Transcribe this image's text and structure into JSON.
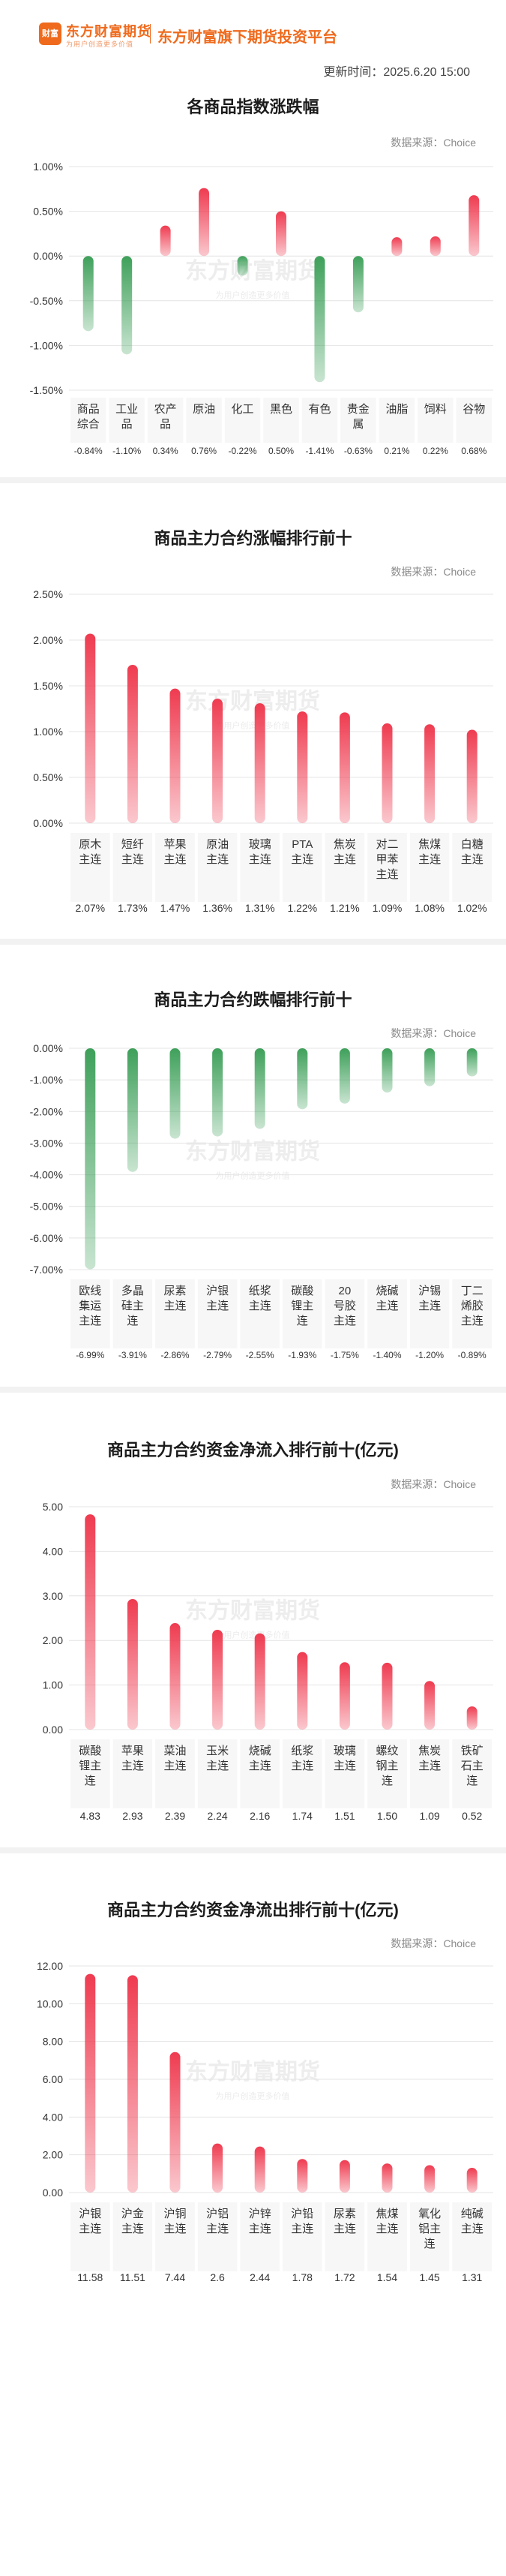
{
  "header": {
    "logo_mark": "财富",
    "logo_name": "东方财富期货",
    "logo_slogan": "为用户创造更多价值",
    "platform": "东方财富旗下期货投资平台",
    "update_time": "更新时间：2025.6.20 15:00"
  },
  "watermark": {
    "name": "东方财富期货",
    "slogan": "为用户创造更多价值"
  },
  "source_label": "数据来源：Choice",
  "colors": {
    "up": "#ef3b50",
    "down": "#3ea05a",
    "header": "#ef6a1c",
    "separator": "#f2f2f2"
  },
  "chart_data": [
    {
      "type": "bar",
      "title": "各商品指数涨跌幅",
      "categories": [
        "商品综合",
        "工业品",
        "农产品",
        "原油",
        "化工",
        "黑色",
        "有色",
        "贵金属",
        "油脂",
        "饲料",
        "谷物"
      ],
      "values": [
        -0.84,
        -1.1,
        0.34,
        0.76,
        -0.22,
        0.5,
        -1.41,
        -0.63,
        0.21,
        0.22,
        0.68
      ],
      "value_labels": [
        "-0.84%",
        "-1.10%",
        "0.34%",
        "0.76%",
        "-0.22%",
        "0.50%",
        "-1.41%",
        "-0.63%",
        "0.21%",
        "0.22%",
        "0.68%"
      ],
      "yticks": [
        "1.00%",
        "0.50%",
        "0.00%",
        "-0.50%",
        "-1.00%",
        "-1.50%"
      ],
      "ytick_values": [
        1.0,
        0.5,
        0.0,
        -0.5,
        -1.0,
        -1.5
      ],
      "ylim": [
        -1.5,
        1.0
      ],
      "grid": true
    },
    {
      "type": "bar",
      "title": "商品主力合约涨幅排行前十",
      "categories": [
        "原木主连",
        "短纤主连",
        "苹果主连",
        "原油主连",
        "玻璃主连",
        "PTA主连",
        "焦炭主连",
        "对二甲苯主连",
        "焦煤主连",
        "白糖主连"
      ],
      "values": [
        2.07,
        1.73,
        1.47,
        1.36,
        1.31,
        1.22,
        1.21,
        1.09,
        1.08,
        1.02
      ],
      "value_labels": [
        "2.07%",
        "1.73%",
        "1.47%",
        "1.36%",
        "1.31%",
        "1.22%",
        "1.21%",
        "1.09%",
        "1.08%",
        "1.02%"
      ],
      "yticks": [
        "2.50%",
        "2.00%",
        "1.50%",
        "1.00%",
        "0.50%",
        "0.00%"
      ],
      "ytick_values": [
        2.5,
        2.0,
        1.5,
        1.0,
        0.5,
        0.0
      ],
      "ylim": [
        0,
        2.5
      ],
      "grid": true
    },
    {
      "type": "bar",
      "title": "商品主力合约跌幅排行前十",
      "categories": [
        "欧线集运主连",
        "多晶硅主连",
        "尿素主连",
        "沪银主连",
        "纸浆主连",
        "碳酸锂主连",
        "20号胶主连",
        "烧碱主连",
        "沪锡主连",
        "丁二烯胶主连"
      ],
      "values": [
        -6.99,
        -3.91,
        -2.86,
        -2.79,
        -2.55,
        -1.93,
        -1.75,
        -1.4,
        -1.2,
        -0.89
      ],
      "value_labels": [
        "-6.99%",
        "-3.91%",
        "-2.86%",
        "-2.79%",
        "-2.55%",
        "-1.93%",
        "-1.75%",
        "-1.40%",
        "-1.20%",
        "-0.89%"
      ],
      "yticks": [
        "0.00%",
        "-1.00%",
        "-2.00%",
        "-3.00%",
        "-4.00%",
        "-5.00%",
        "-6.00%",
        "-7.00%"
      ],
      "ytick_values": [
        0,
        -1,
        -2,
        -3,
        -4,
        -5,
        -6,
        -7
      ],
      "ylim": [
        -7,
        0
      ],
      "grid": true
    },
    {
      "type": "bar",
      "title": "商品主力合约资金净流入排行前十(亿元)",
      "categories": [
        "碳酸锂主连",
        "苹果主连",
        "菜油主连",
        "玉米主连",
        "烧碱主连",
        "纸浆主连",
        "玻璃主连",
        "螺纹钢主连",
        "焦炭主连",
        "铁矿石主连"
      ],
      "values": [
        4.83,
        2.93,
        2.39,
        2.24,
        2.16,
        1.74,
        1.51,
        1.5,
        1.09,
        0.52
      ],
      "value_labels": [
        "4.83",
        "2.93",
        "2.39",
        "2.24",
        "2.16",
        "1.74",
        "1.51",
        "1.50",
        "1.09",
        "0.52"
      ],
      "yticks": [
        "5.00",
        "4.00",
        "3.00",
        "2.00",
        "1.00",
        "0.00"
      ],
      "ytick_values": [
        5,
        4,
        3,
        2,
        1,
        0
      ],
      "ylim": [
        0,
        5
      ],
      "grid": true
    },
    {
      "type": "bar",
      "title": "商品主力合约资金净流出排行前十(亿元)",
      "categories": [
        "沪银主连",
        "沪金主连",
        "沪铜主连",
        "沪铝主连",
        "沪锌主连",
        "沪铅主连",
        "尿素主连",
        "焦煤主连",
        "氧化铝主连",
        "纯碱主连"
      ],
      "values": [
        11.58,
        11.51,
        7.44,
        2.6,
        2.44,
        1.78,
        1.72,
        1.54,
        1.45,
        1.31
      ],
      "value_labels": [
        "11.58",
        "11.51",
        "7.44",
        "2.6",
        "2.44",
        "1.78",
        "1.72",
        "1.54",
        "1.45",
        "1.31"
      ],
      "yticks": [
        "12.00",
        "10.00",
        "8.00",
        "6.00",
        "4.00",
        "2.00",
        "0.00"
      ],
      "ytick_values": [
        12,
        10,
        8,
        6,
        4,
        2,
        0
      ],
      "ylim": [
        0,
        12
      ],
      "grid": true
    }
  ]
}
